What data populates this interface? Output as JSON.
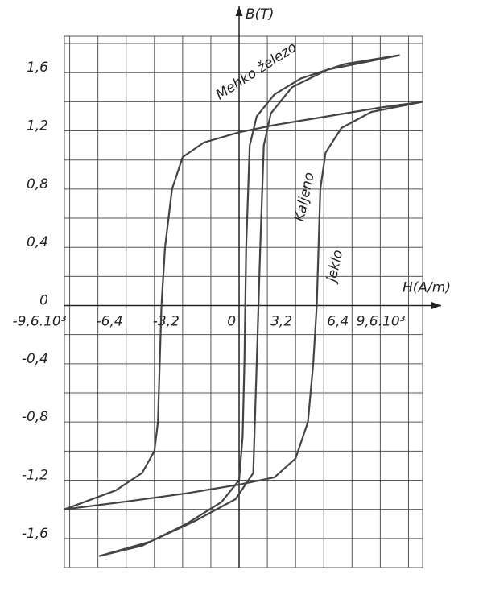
{
  "chart_data": {
    "type": "line",
    "xlabel": "H(A/m)",
    "ylabel": "B(T)",
    "annotations": [
      "Mehko železo",
      "Kaljeno",
      "jeklo"
    ],
    "xlim": [
      -9.9,
      10.4
    ],
    "ylim": [
      -1.8,
      1.85
    ],
    "xticks": [
      {
        "value": -9.6,
        "label": "-9,6.10³"
      },
      {
        "value": -6.4,
        "label": "-6,4"
      },
      {
        "value": -3.2,
        "label": "-3,2"
      },
      0,
      {
        "value": 3.2,
        "label": "3,2"
      },
      {
        "value": 6.4,
        "label": "6,4"
      },
      {
        "value": 9.6,
        "label": "9,6.10³"
      }
    ],
    "yticks": [
      {
        "value": 1.6,
        "label": "1,6"
      },
      {
        "value": 1.2,
        "label": "1,2"
      },
      {
        "value": 0.8,
        "label": "0,8"
      },
      {
        "value": 0.4,
        "label": "0,4"
      },
      0,
      {
        "value": -0.4,
        "label": "-0,4"
      },
      {
        "value": -0.8,
        "label": "-0,8"
      },
      {
        "value": -1.2,
        "label": "-1,2"
      },
      {
        "value": -1.6,
        "label": "-1,6"
      }
    ],
    "xminorticks": [
      -8,
      -4.8,
      -1.6,
      1.6,
      4.8,
      8
    ],
    "yminorticks": [
      -1.4,
      -1,
      -0.6,
      -0.2,
      0.2,
      0.6,
      1,
      1.4,
      1.8
    ],
    "grid": true,
    "series": [
      {
        "color": "#444444",
        "x": [
          9.1,
          6,
          3.5,
          2,
          1,
          0.6,
          0.4,
          0.3,
          0.2,
          0,
          -1,
          -3,
          -5.5,
          -7.9,
          -5,
          -2.5,
          -0.2,
          0.8,
          1,
          1.2,
          1.4,
          1.8,
          3,
          5,
          9.1
        ],
        "values": [
          1.72,
          1.66,
          1.56,
          1.45,
          1.3,
          1.1,
          0.4,
          -0.4,
          -0.9,
          -1.2,
          -1.35,
          -1.5,
          -1.65,
          -1.72,
          -1.62,
          -1.48,
          -1.33,
          -1.15,
          -0.4,
          0.4,
          1.1,
          1.32,
          1.5,
          1.62,
          1.72
        ]
      },
      {
        "color": "#444444",
        "x": [
          10.4,
          8,
          5,
          2,
          0,
          -2,
          -3.2,
          -3.8,
          -4.2,
          -4.4,
          -4.5,
          -4.6,
          -4.8,
          -5.5,
          -7,
          -9.9,
          -6,
          -3,
          0,
          2,
          3.2,
          3.9,
          4.2,
          4.4,
          4.5,
          4.6,
          4.9,
          5.8,
          7.5,
          10.4
        ],
        "values": [
          1.4,
          1.36,
          1.3,
          1.24,
          1.19,
          1.12,
          1.02,
          0.8,
          0.4,
          0,
          -0.4,
          -0.8,
          -1,
          -1.15,
          -1.27,
          -1.4,
          -1.34,
          -1.29,
          -1.23,
          -1.18,
          -1.05,
          -0.8,
          -0.4,
          0,
          0.4,
          0.8,
          1.05,
          1.22,
          1.33,
          1.4
        ]
      }
    ]
  }
}
